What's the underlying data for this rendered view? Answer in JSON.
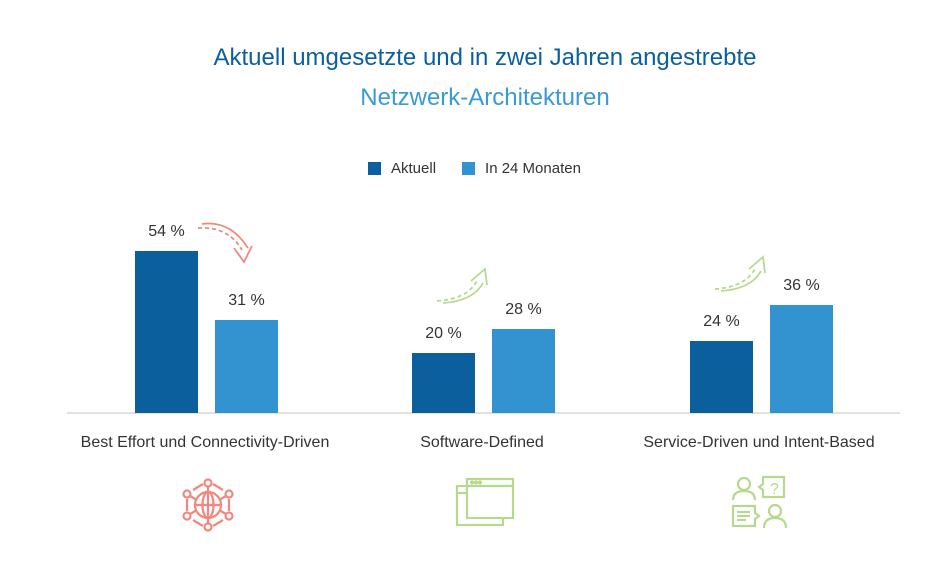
{
  "chart_data": {
    "type": "bar",
    "title": "Aktuell umgesetzte und in zwei Jahren angestrebte",
    "subtitle": "Netzwerk-Architekturen",
    "categories": [
      "Best Effort und Connectivity-Driven",
      "Software-Defined",
      "Service-Driven und Intent-Based"
    ],
    "series": [
      {
        "name": "Aktuell",
        "color": "#0b5f9c",
        "values": [
          54,
          20,
          24
        ]
      },
      {
        "name": "In 24 Monaten",
        "color": "#3393d0",
        "values": [
          31,
          28,
          36
        ]
      }
    ],
    "value_labels": [
      [
        "54 %",
        "20 %",
        "24 %"
      ],
      [
        "31 %",
        "28 %",
        "36 %"
      ]
    ],
    "trend_arrows": [
      "down",
      "up",
      "up"
    ],
    "trend_colors": {
      "down": "#f4877d",
      "up": "#b7d98f"
    },
    "category_icons": [
      "network-globe-icon",
      "browser-windows-icon",
      "conversation-question-icon"
    ],
    "xlabel": "",
    "ylabel": "",
    "ylim": [
      0,
      60
    ],
    "grid": false,
    "legend_position": "top-center"
  }
}
